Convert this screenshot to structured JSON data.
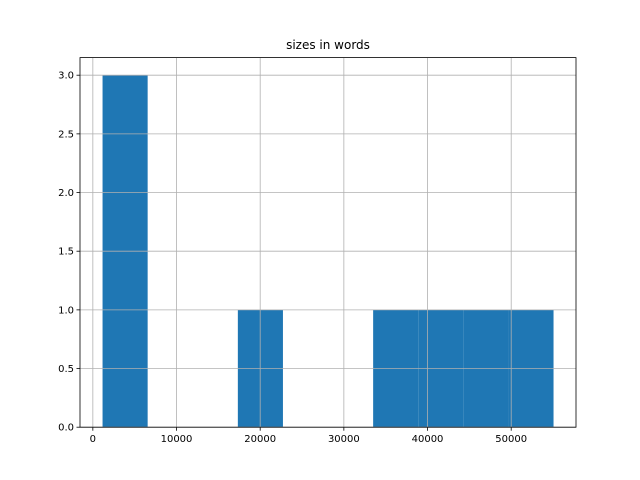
{
  "chart_data": {
    "type": "histogram",
    "title": "sizes in words",
    "bins": [
      1160,
      6550,
      11940,
      17330,
      22720,
      28110,
      33500,
      38890,
      44280,
      49670,
      55060
    ],
    "values": [
      3,
      0,
      0,
      1,
      0,
      0,
      1,
      1,
      1,
      1
    ],
    "color": "#1f77b4",
    "xlim": [
      -1535,
      57745
    ],
    "xticks": [
      0,
      10000,
      20000,
      30000,
      40000,
      50000
    ],
    "ylim": [
      0,
      3.15
    ],
    "yticks": [
      {
        "value": 0,
        "label": "0.0"
      },
      {
        "value": 0.5,
        "label": "0.5"
      },
      {
        "value": 1,
        "label": "1.0"
      },
      {
        "value": 1.5,
        "label": "1.5"
      },
      {
        "value": 2,
        "label": "2.0"
      },
      {
        "value": 2.5,
        "label": "2.5"
      },
      {
        "value": 3,
        "label": "3.0"
      }
    ],
    "grid": true
  }
}
